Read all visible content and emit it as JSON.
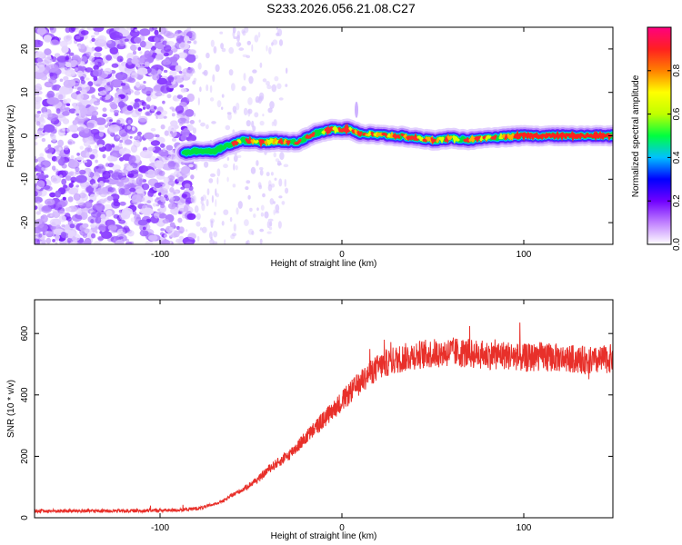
{
  "title": "S233.2026.056.21.08.C27",
  "chart_data": [
    {
      "type": "heatmap",
      "title": "S233.2026.056.21.08.C27",
      "xlabel": "Height of straight line (km)",
      "ylabel": "Frequency (Hz)",
      "xlim": [
        -169,
        149
      ],
      "ylim": [
        -25,
        25
      ],
      "x_ticks": [
        -100,
        0,
        100
      ],
      "x_tick_labels": [
        "-100",
        "0",
        "100"
      ],
      "y_ticks": [
        -20,
        -10,
        0,
        10,
        20
      ],
      "y_tick_labels": [
        "-20",
        "-10",
        "0",
        "10",
        "20"
      ],
      "colorbar": {
        "label": "Normalized spectral amplitude",
        "range": [
          0,
          1
        ],
        "ticks": [
          0.0,
          0.2,
          0.4,
          0.6,
          0.8
        ],
        "tick_labels": [
          "0.0",
          "0.2",
          "0.4",
          "0.6",
          "0.8"
        ],
        "colors": [
          "#ffffff",
          "#c080ff",
          "#7000ff",
          "#0000ff",
          "#00c0ff",
          "#00ff40",
          "#c0ff00",
          "#ffff00",
          "#ff8000",
          "#ff2020",
          "#ff0080"
        ]
      },
      "ridge": {
        "x": [
          -87,
          -80,
          -70,
          -62,
          -55,
          -45,
          -35,
          -25,
          -15,
          -5,
          0,
          5,
          10,
          20,
          30,
          40,
          50,
          60,
          70,
          80,
          90,
          100,
          110,
          120,
          130,
          140,
          149
        ],
        "y": [
          -4,
          -3.5,
          -3.5,
          -2,
          -1,
          -1.5,
          -1.2,
          -1.5,
          0.5,
          1.5,
          1.5,
          1.5,
          0.5,
          0.2,
          0,
          -0.5,
          -1,
          -0.6,
          -0.9,
          -0.6,
          -0.2,
          0,
          0,
          0,
          0,
          0,
          0
        ]
      }
    },
    {
      "type": "line",
      "xlabel": "Height of straight line (km)",
      "ylabel": "SNR (10 * v/v)",
      "xlim": [
        -169,
        149
      ],
      "ylim": [
        0,
        710
      ],
      "x_ticks": [
        -100,
        0,
        100
      ],
      "x_tick_labels": [
        "-100",
        "0",
        "100"
      ],
      "y_ticks": [
        0,
        200,
        400,
        600
      ],
      "y_tick_labels": [
        "0",
        "200",
        "400",
        "600"
      ],
      "series": [
        {
          "name": "SNR",
          "color": "#e8302a",
          "x": [
            -169,
            -150,
            -130,
            -110,
            -90,
            -80,
            -75,
            -70,
            -65,
            -60,
            -55,
            -50,
            -45,
            -40,
            -35,
            -30,
            -25,
            -20,
            -15,
            -10,
            -5,
            0,
            5,
            10,
            15,
            20,
            25,
            30,
            40,
            50,
            60,
            70,
            80,
            90,
            100,
            110,
            120,
            130,
            140,
            149
          ],
          "y": [
            22,
            22,
            22,
            23,
            25,
            30,
            35,
            45,
            55,
            75,
            90,
            110,
            130,
            160,
            180,
            200,
            230,
            260,
            290,
            320,
            350,
            380,
            410,
            440,
            470,
            490,
            505,
            515,
            530,
            535,
            540,
            535,
            530,
            530,
            520,
            525,
            520,
            515,
            510,
            520
          ]
        }
      ]
    }
  ]
}
